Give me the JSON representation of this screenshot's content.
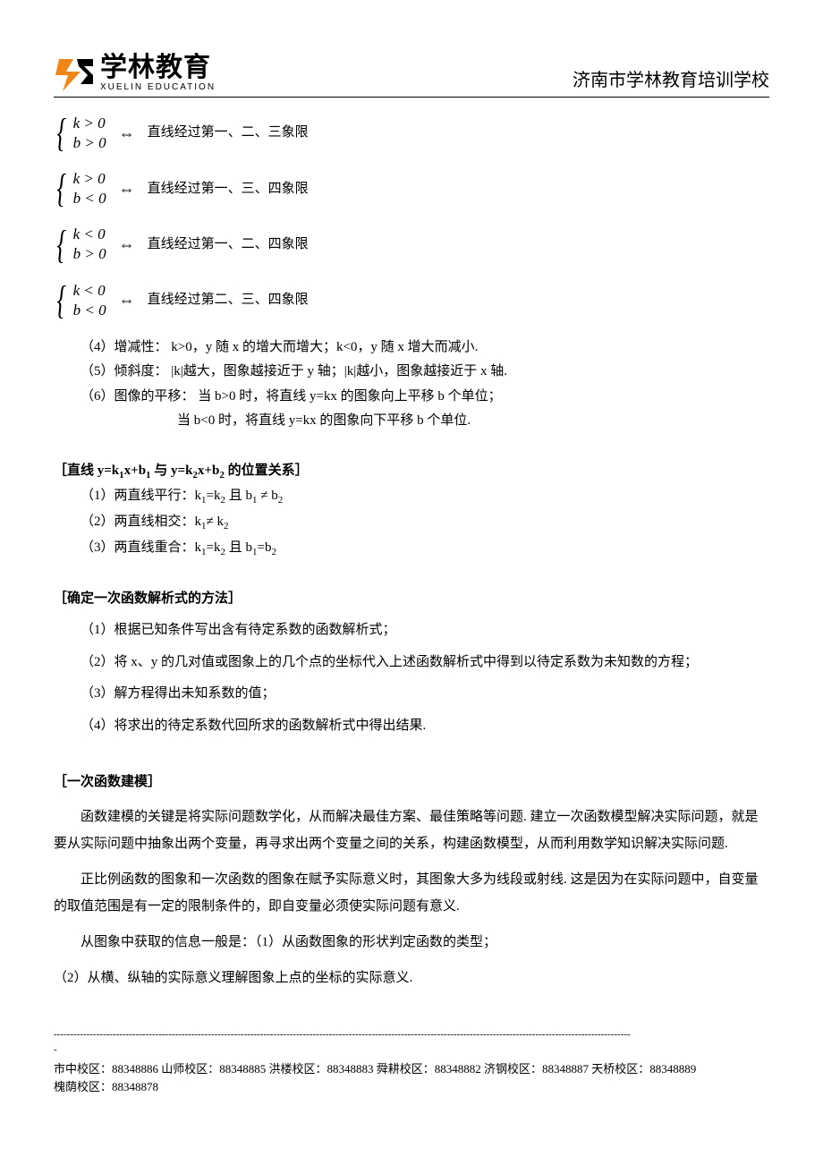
{
  "header": {
    "logo_cn": "学林教育",
    "logo_en": "XUELIN EDUCATION",
    "logo_colors": {
      "orange": "#f08519",
      "black": "#000000"
    },
    "school_name": "济南市学林教育培训学校"
  },
  "cases": [
    {
      "cond_top": "k > 0",
      "cond_bot": "b > 0",
      "text": "直线经过第一、二、三象限"
    },
    {
      "cond_top": "k > 0",
      "cond_bot": "b < 0",
      "text": "直线经过第一、三、四象限"
    },
    {
      "cond_top": "k < 0",
      "cond_bot": "b > 0",
      "text": "直线经过第一、二、四象限"
    },
    {
      "cond_top": "k < 0",
      "cond_bot": "b < 0",
      "text": "直线经过第二、三、四象限"
    }
  ],
  "iff_symbol": "⇔",
  "props": {
    "p4": "（4）增减性：  k>0，y 随 x 的增大而增大；k<0，y 随 x 增大而减小.",
    "p5": "（5）倾斜度： |k|越大，图象越接近于 y 轴；|k|越小，图象越接近于 x 轴.",
    "p6a": "（6）图像的平移：  当 b>0 时，将直线 y=kx 的图象向上平移 b 个单位；",
    "p6b": "当 b<0 时，将直线 y=kx 的图象向下平移 b 个单位."
  },
  "relation": {
    "title_prefix": "［直线 y=k",
    "title_mid1": "x+b",
    "title_mid2": " 与 y=k",
    "title_mid3": "x+b",
    "title_suffix": " 的位置关系］",
    "r1_a": "（1）两直线平行：k",
    "r1_b": "=k",
    "r1_c": " 且 b",
    "r1_d": "  ≠ b",
    "r2_a": "（2）两直线相交：k",
    "r2_b": "≠ k",
    "r3_a": "（3）两直线重合：k",
    "r3_b": "=k",
    "r3_c": " 且 b",
    "r3_d": "=b"
  },
  "method": {
    "title": "［确定一次函数解析式的方法］",
    "m1": "（1）根据已知条件写出含有待定系数的函数解析式；",
    "m2": "（2）将 x、y 的几对值或图象上的几个点的坐标代入上述函数解析式中得到以待定系数为未知数的方程；",
    "m3": "（3）解方程得出未知系数的值；",
    "m4": "（4）将求出的待定系数代回所求的函数解析式中得出结果."
  },
  "modeling": {
    "title": "［一次函数建模］",
    "p1": "函数建模的关键是将实际问题数学化，从而解决最佳方案、最佳策略等问题. 建立一次函数模型解决实际问题，就是要从实际问题中抽象出两个变量，再寻求出两个变量之间的关系，构建函数模型，从而利用数学知识解决实际问题.",
    "p2": "正比例函数的图象和一次函数的图象在赋予实际意义时，其图象大多为线段或射线. 这是因为在实际问题中，自变量的取值范围是有一定的限制条件的，即自变量必须使实际问题有意义.",
    "p3": "从图象中获取的信息一般是：（1）从函数图象的形状判定函数的类型；",
    "p4": "（2）从横、纵轴的实际意义理解图象上点的坐标的实际意义."
  },
  "footer": {
    "dash_count": 176,
    "campuses": [
      {
        "name": "市中校区",
        "tel": "88348886"
      },
      {
        "name": "山师校区",
        "tel": "88348885"
      },
      {
        "name": "洪楼校区",
        "tel": "88348883"
      },
      {
        "name": "舜耕校区",
        "tel": "88348882"
      },
      {
        "name": "济钢校区",
        "tel": "88348887"
      },
      {
        "name": "天桥校区",
        "tel": "88348889"
      },
      {
        "name": "槐荫校区",
        "tel": "88348878"
      }
    ]
  },
  "style": {
    "page_bg": "#ffffff",
    "text_color": "#000000",
    "body_fontsize_pt": 11,
    "header_fontsize_pt": 15,
    "logo_cn_fontsize_pt": 22,
    "line_height": 1.7
  }
}
